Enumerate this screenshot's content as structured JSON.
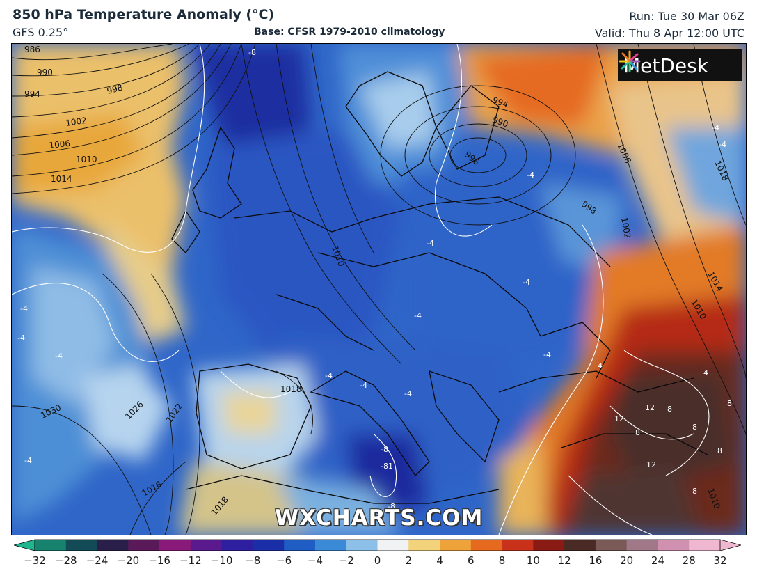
{
  "header": {
    "title": "850 hPa Temperature Anomaly (°C)",
    "model": "GFS 0.25°",
    "base": "Base: CFSR 1979-2010 climatology",
    "run": "Run: Tue 30 Mar 06Z",
    "valid": "Valid: Thu 8 Apr 12:00 UTC"
  },
  "logo": {
    "text": "MetDesk",
    "icon": "metdesk-burst-icon"
  },
  "watermark": "WXCHARTS.COM",
  "colorbar": {
    "ticks": [
      "−32",
      "−28",
      "−24",
      "−20",
      "−16",
      "−12",
      "−10",
      "−8",
      "−6",
      "−4",
      "−2",
      "0",
      "2",
      "4",
      "6",
      "8",
      "10",
      "12",
      "16",
      "20",
      "24",
      "28",
      "32"
    ],
    "colors": [
      "#1fb58f",
      "#17826e",
      "#124a55",
      "#2a1f4a",
      "#5a1a5a",
      "#8a1a7a",
      "#5a1a8e",
      "#2e1fa0",
      "#1a2ea8",
      "#1f5cc4",
      "#3a8ad8",
      "#8cc0e8",
      "#f0f2f4",
      "#f2d27a",
      "#eea23a",
      "#e5691e",
      "#c8321a",
      "#8a1a14",
      "#4a2a24",
      "#7a5a56",
      "#a07888",
      "#d090b0",
      "#f0b8d0"
    ]
  },
  "map": {
    "isobar_labels": [
      {
        "text": "986"
      },
      {
        "text": "990"
      },
      {
        "text": "994"
      },
      {
        "text": "998"
      },
      {
        "text": "1002"
      },
      {
        "text": "1006"
      },
      {
        "text": "1010"
      },
      {
        "text": "1014"
      },
      {
        "text": "994"
      },
      {
        "text": "990"
      },
      {
        "text": "996"
      },
      {
        "text": "1006"
      },
      {
        "text": "1018"
      },
      {
        "text": "998"
      },
      {
        "text": "1002"
      },
      {
        "text": "1014"
      },
      {
        "text": "1010"
      },
      {
        "text": "1010"
      },
      {
        "text": "1018"
      },
      {
        "text": "1030"
      },
      {
        "text": "1026"
      },
      {
        "text": "1022"
      },
      {
        "text": "1018"
      },
      {
        "text": "1018"
      },
      {
        "text": "1010"
      }
    ],
    "anomaly_labels": [
      {
        "text": "-8"
      },
      {
        "text": "-4"
      },
      {
        "text": "-4"
      },
      {
        "text": "-4"
      },
      {
        "text": "-4"
      },
      {
        "text": "-4"
      },
      {
        "text": "-4"
      },
      {
        "text": "-4"
      },
      {
        "text": "-4"
      },
      {
        "text": "-4"
      },
      {
        "text": "-4"
      },
      {
        "text": "-4"
      },
      {
        "text": "-8"
      },
      {
        "text": "-81"
      },
      {
        "text": "-8"
      },
      {
        "text": "4"
      },
      {
        "text": "4"
      },
      {
        "text": "12"
      },
      {
        "text": "12"
      },
      {
        "text": "8"
      },
      {
        "text": "8"
      },
      {
        "text": "8"
      },
      {
        "text": "12"
      },
      {
        "text": "8"
      },
      {
        "text": "8"
      },
      {
        "text": "8"
      },
      {
        "text": "-4"
      },
      {
        "text": "-4"
      },
      {
        "text": "-4"
      }
    ]
  }
}
